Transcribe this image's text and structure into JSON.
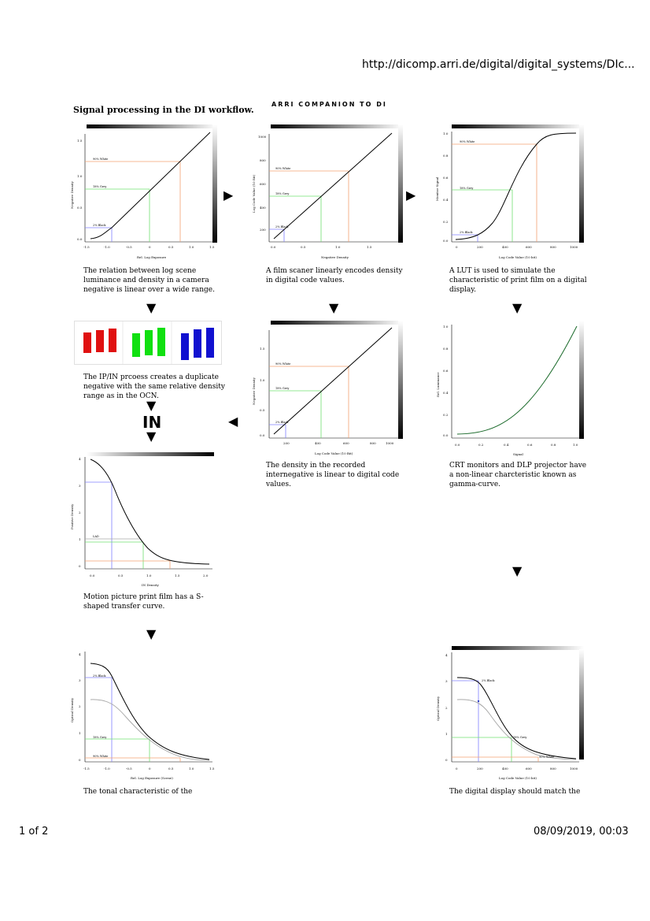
{
  "header": {
    "url": "http://dicomp.arri.de/digital/digital_systems/DIc..."
  },
  "page_title": "Signal processing in the DI workflow.",
  "companion": "ARRI COMPANION TO DI",
  "footer": {
    "page": "1 of 2",
    "datetime": "08/09/2019, 00:03"
  },
  "in_label": "IN",
  "captions": {
    "c1": "The relation between log scene luminance and density in a camera negative is linear over a wide range.",
    "c2": "A film scaner linearly encodes density in digital code values.",
    "c3": "A LUT is used to simulate the characteristic of print film on a digital display.",
    "c4": "The IP/IN prcoess creates a duplicate negative with the same relative density range as in the OCN.",
    "c5": "The density in the recorded internegative is linear to digital code values.",
    "c6": "CRT monitors and DLP projector have a non-linear charcteristic known as gamma-curve.",
    "c7": "Motion picture print film has a S-shaped transfer curve.",
    "c8": "The tonal characteristic of the",
    "c9": "The digital display should match the"
  },
  "charts": {
    "g1": {
      "ylabel": "Negative Density",
      "xlabel": "Rel. Log Exposure",
      "xticks": [
        "-1.5",
        "-1.0",
        "-0.5",
        "0",
        "0.5",
        "1.0",
        "1.5"
      ],
      "yticks": [
        "1.5",
        "1.0",
        "0.5",
        "0.0"
      ],
      "labels": [
        "90% White",
        "18% Grey",
        "2% Black"
      ]
    },
    "g2": {
      "ylabel": "Log Code Value (10 Bit)",
      "xlabel": "Negative Density",
      "xticks": [
        "0.0",
        "0.5",
        "1.0",
        "1.5"
      ],
      "yticks": [
        "1000",
        "800",
        "600",
        "400",
        "200"
      ],
      "labels": [
        "90% White",
        "18% Grey",
        "2% Black"
      ]
    },
    "g3": {
      "ylabel": "Monitor Signal",
      "xlabel": "Log Code Value (10 bit)",
      "xticks": [
        "0",
        "200",
        "400",
        "600",
        "800",
        "1000"
      ],
      "yticks": [
        "1.0",
        "0.8",
        "0.6",
        "0.4",
        "0.2",
        "0.0"
      ],
      "labels": [
        "90% White",
        "18% Grey",
        "2% Black"
      ]
    },
    "g5": {
      "ylabel": "Negative Density",
      "xlabel": "Log Code Value (10 Bit)",
      "xticks": [
        "200",
        "400",
        "600",
        "800",
        "1000"
      ],
      "yticks": [
        "1.5",
        "1.0",
        "0.5",
        "0.0"
      ],
      "labels": [
        "90% White",
        "18% Grey",
        "2% Black"
      ]
    },
    "g6": {
      "ylabel": "Rel. Luminance",
      "xlabel": "Signal",
      "xticks": [
        "0.0",
        "0.2",
        "0.4",
        "0.6",
        "0.8",
        "1.0"
      ],
      "yticks": [
        "1.0",
        "0.8",
        "0.6",
        "0.4",
        "0.2",
        "0.0"
      ]
    },
    "g7": {
      "ylabel": "Positive Density",
      "xlabel": "IN Density",
      "xticks": [
        "0.0",
        "0.5",
        "1.0",
        "1.5",
        "2.0"
      ],
      "yticks": [
        "4",
        "3",
        "2",
        "1",
        "0"
      ],
      "labels": [
        "LAD"
      ]
    },
    "g8": {
      "ylabel": "Optical Density",
      "xlabel": "Rel. Log Exposure (Scene)",
      "xticks": [
        "-1.5",
        "-1.0",
        "-0.5",
        "0",
        "0.5",
        "1.0",
        "1.5"
      ],
      "yticks": [
        "4",
        "3",
        "2",
        "1",
        "0"
      ],
      "labels": [
        "2% Black",
        "18% Grey",
        "90% White"
      ]
    },
    "g9": {
      "ylabel": "Optical Density",
      "xlabel": "Log Code Value (10 bit)",
      "xticks": [
        "0",
        "200",
        "400",
        "600",
        "800",
        "1000"
      ],
      "yticks": [
        "4",
        "3",
        "2",
        "1",
        "0"
      ],
      "labels": [
        "2% Black",
        "18% Grey",
        "90% White"
      ]
    }
  }
}
